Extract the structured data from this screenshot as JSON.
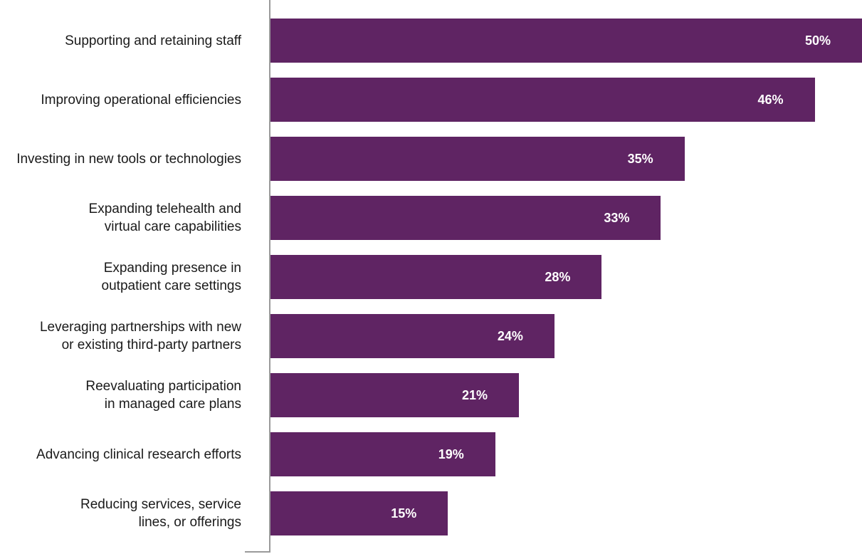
{
  "chart_data": {
    "type": "bar",
    "orientation": "horizontal",
    "categories": [
      "Supporting and retaining staff",
      "Improving operational efficiencies",
      "Investing in new tools or technologies",
      "Expanding telehealth and\nvirtual care capabilities",
      "Expanding presence in\noutpatient care settings",
      "Leveraging partnerships with new\nor existing third-party partners",
      "Reevaluating participation\nin managed care plans",
      "Advancing clinical research efforts",
      "Reducing services, service\nlines, or offerings"
    ],
    "values": [
      50,
      46,
      35,
      33,
      28,
      24,
      21,
      19,
      15
    ],
    "value_labels": [
      "50%",
      "46%",
      "35%",
      "33%",
      "28%",
      "24%",
      "21%",
      "19%",
      "15%"
    ],
    "xlim": [
      0,
      50
    ],
    "grid": false,
    "bar_color": "#5f2463",
    "value_label_color": "#ffffff"
  }
}
